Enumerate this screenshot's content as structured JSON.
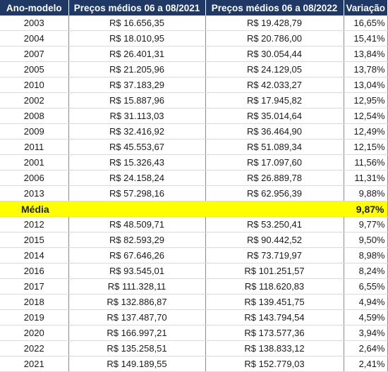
{
  "headers": [
    "Ano-modelo",
    "Preços médios 06 a 08/2021",
    "Preços médios 06 a 08/2022",
    "Variação"
  ],
  "rows_top": [
    {
      "year": "2003",
      "p2021": "R$ 16.656,35",
      "p2022": "R$ 19.428,79",
      "var": "16,65%"
    },
    {
      "year": "2004",
      "p2021": "R$ 18.010,95",
      "p2022": "R$ 20.786,00",
      "var": "15,41%"
    },
    {
      "year": "2007",
      "p2021": "R$ 26.401,31",
      "p2022": "R$ 30.054,44",
      "var": "13,84%"
    },
    {
      "year": "2005",
      "p2021": "R$ 21.205,96",
      "p2022": "R$ 24.129,05",
      "var": "13,78%"
    },
    {
      "year": "2010",
      "p2021": "R$ 37.183,29",
      "p2022": "R$ 42.033,27",
      "var": "13,04%"
    },
    {
      "year": "2002",
      "p2021": "R$ 15.887,96",
      "p2022": "R$ 17.945,82",
      "var": "12,95%"
    },
    {
      "year": "2008",
      "p2021": "R$ 31.113,03",
      "p2022": "R$ 35.014,64",
      "var": "12,54%"
    },
    {
      "year": "2009",
      "p2021": "R$ 32.416,92",
      "p2022": "R$ 36.464,90",
      "var": "12,49%"
    },
    {
      "year": "2011",
      "p2021": "R$ 45.553,67",
      "p2022": "R$ 51.089,34",
      "var": "12,15%"
    },
    {
      "year": "2001",
      "p2021": "R$ 15.326,43",
      "p2022": "R$ 17.097,60",
      "var": "11,56%"
    },
    {
      "year": "2006",
      "p2021": "R$ 24.158,24",
      "p2022": "R$ 26.889,78",
      "var": "11,31%"
    },
    {
      "year": "2013",
      "p2021": "R$ 57.298,16",
      "p2022": "R$ 62.956,39",
      "var": "9,88%"
    }
  ],
  "average": {
    "label": "Média",
    "value": "9,87%"
  },
  "rows_bottom": [
    {
      "year": "2012",
      "p2021": "R$ 48.509,71",
      "p2022": "R$ 53.250,41",
      "var": "9,77%"
    },
    {
      "year": "2015",
      "p2021": "R$ 82.593,29",
      "p2022": "R$ 90.442,52",
      "var": "9,50%"
    },
    {
      "year": "2014",
      "p2021": "R$ 67.646,26",
      "p2022": "R$ 73.719,97",
      "var": "8,98%"
    },
    {
      "year": "2016",
      "p2021": "R$ 93.545,01",
      "p2022": "R$ 101.251,57",
      "var": "8,24%"
    },
    {
      "year": "2017",
      "p2021": "R$ 111.328,11",
      "p2022": "R$ 118.620,83",
      "var": "6,55%"
    },
    {
      "year": "2018",
      "p2021": "R$ 132.886,87",
      "p2022": "R$ 139.451,75",
      "var": "4,94%"
    },
    {
      "year": "2019",
      "p2021": "R$ 137.487,70",
      "p2022": "R$ 143.794,54",
      "var": "4,59%"
    },
    {
      "year": "2020",
      "p2021": "R$ 166.997,21",
      "p2022": "R$ 173.577,36",
      "var": "3,94%"
    },
    {
      "year": "2022",
      "p2021": "R$ 135.258,51",
      "p2022": "R$ 138.833,12",
      "var": "2,64%"
    },
    {
      "year": "2021",
      "p2021": "R$ 149.189,55",
      "p2022": "R$ 152.779,03",
      "var": "2,41%"
    }
  ]
}
